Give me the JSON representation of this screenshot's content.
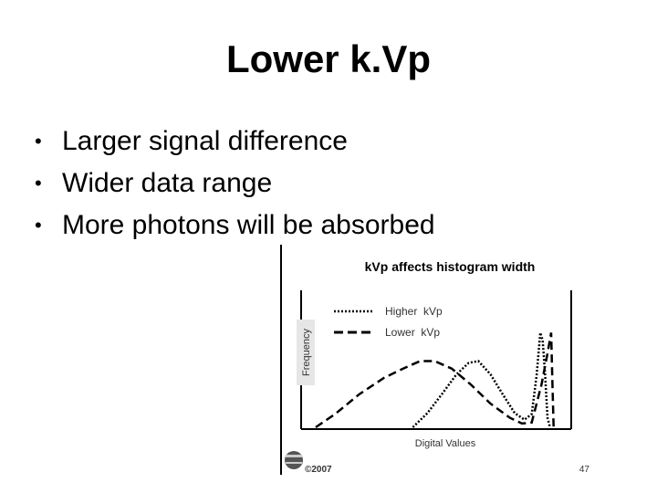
{
  "slide": {
    "title": "Lower k.Vp",
    "bullets": [
      "Larger signal difference",
      "Wider data range",
      "More photons will be absorbed"
    ],
    "bullet_glyph": "•"
  },
  "figure": {
    "footer_year": "©2007",
    "page_number": "47",
    "logo_icon": "university-seal-icon"
  },
  "chart_data": {
    "type": "line",
    "title": "kVp affects histogram width",
    "xlabel": "Digital Values",
    "ylabel": "Frequency",
    "grid": false,
    "legend_position": "top-left",
    "series": [
      {
        "name": "Higher  kVp",
        "style": "dotted",
        "x": [
          0.4,
          0.46,
          0.52,
          0.58,
          0.63,
          0.67,
          0.72,
          0.77,
          0.82,
          0.86,
          0.89,
          0.91,
          0.925,
          0.935,
          0.945,
          0.955,
          0.965
        ],
        "y": [
          0.0,
          0.15,
          0.35,
          0.56,
          0.68,
          0.7,
          0.56,
          0.35,
          0.15,
          0.08,
          0.14,
          0.55,
          1.0,
          0.92,
          0.55,
          0.1,
          0.0
        ]
      },
      {
        "name": "Lower  kVp",
        "style": "dashed",
        "x": [
          0.0,
          0.08,
          0.18,
          0.28,
          0.36,
          0.43,
          0.49,
          0.56,
          0.64,
          0.72,
          0.8,
          0.85,
          0.89,
          0.93,
          0.955,
          0.97,
          0.975,
          0.98
        ],
        "y": [
          0.0,
          0.14,
          0.35,
          0.52,
          0.62,
          0.7,
          0.7,
          0.62,
          0.45,
          0.25,
          0.1,
          0.04,
          0.05,
          0.45,
          0.78,
          1.0,
          0.5,
          0.0
        ]
      }
    ],
    "xlim": [
      0,
      1
    ],
    "ylim": [
      0,
      1.1
    ]
  }
}
